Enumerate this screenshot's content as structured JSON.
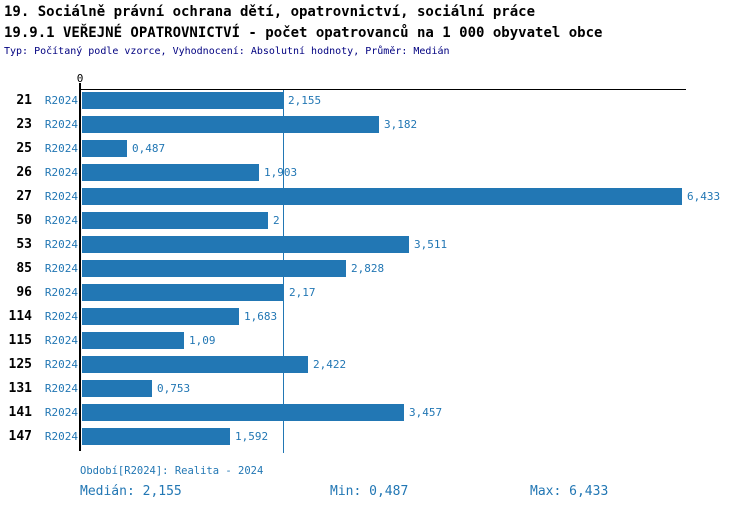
{
  "header": {
    "line1": "19. Sociálně právní ochrana dětí, opatrovnictví, sociální práce",
    "line2": "19.9.1 VEŘEJNÉ OPATROVNICTVÍ - počet opatrovanců na 1 000 obyvatel obce",
    "line3": "Typ: Počítaný podle vzorce, Vyhodnocení: Absolutní hodnoty, Průměr: Medián"
  },
  "chart_data": {
    "type": "bar",
    "orientation": "horizontal",
    "title": "19.9.1 VEŘEJNÉ OPATROVNICTVÍ - počet opatrovanců na 1 000 obyvatel obce",
    "subtitle": "Typ: Počítaný podle vzorce, Vyhodnocení: Absolutní hodnoty, Průměr: Medián",
    "categories": [
      "21",
      "23",
      "25",
      "26",
      "27",
      "50",
      "53",
      "85",
      "96",
      "114",
      "115",
      "125",
      "131",
      "141",
      "147"
    ],
    "series_label": "R2024",
    "values": [
      2.155,
      3.182,
      0.487,
      1.903,
      6.433,
      2,
      3.511,
      2.828,
      2.17,
      1.683,
      1.09,
      2.422,
      0.753,
      3.457,
      1.592
    ],
    "value_labels": [
      "2,155",
      "3,182",
      "0,487",
      "1,903",
      "6,433",
      "2",
      "3,511",
      "2,828",
      "2,17",
      "1,683",
      "1,09",
      "2,422",
      "0,753",
      "3,457",
      "1,592"
    ],
    "xlim": [
      0,
      6.5
    ],
    "axis_zero_label": "0",
    "median": 2.155,
    "grid": "median-line-only",
    "legend": "none",
    "colors": {
      "bar": "#2277b4",
      "accent_text": "#2277b4",
      "axis": "#000000",
      "subtitle_text": "#000080"
    }
  },
  "footer": {
    "period": "Období[R2024]: Realita - 2024",
    "median": "Medián: 2,155",
    "min": "Min: 0,487",
    "max": "Max: 6,433"
  }
}
